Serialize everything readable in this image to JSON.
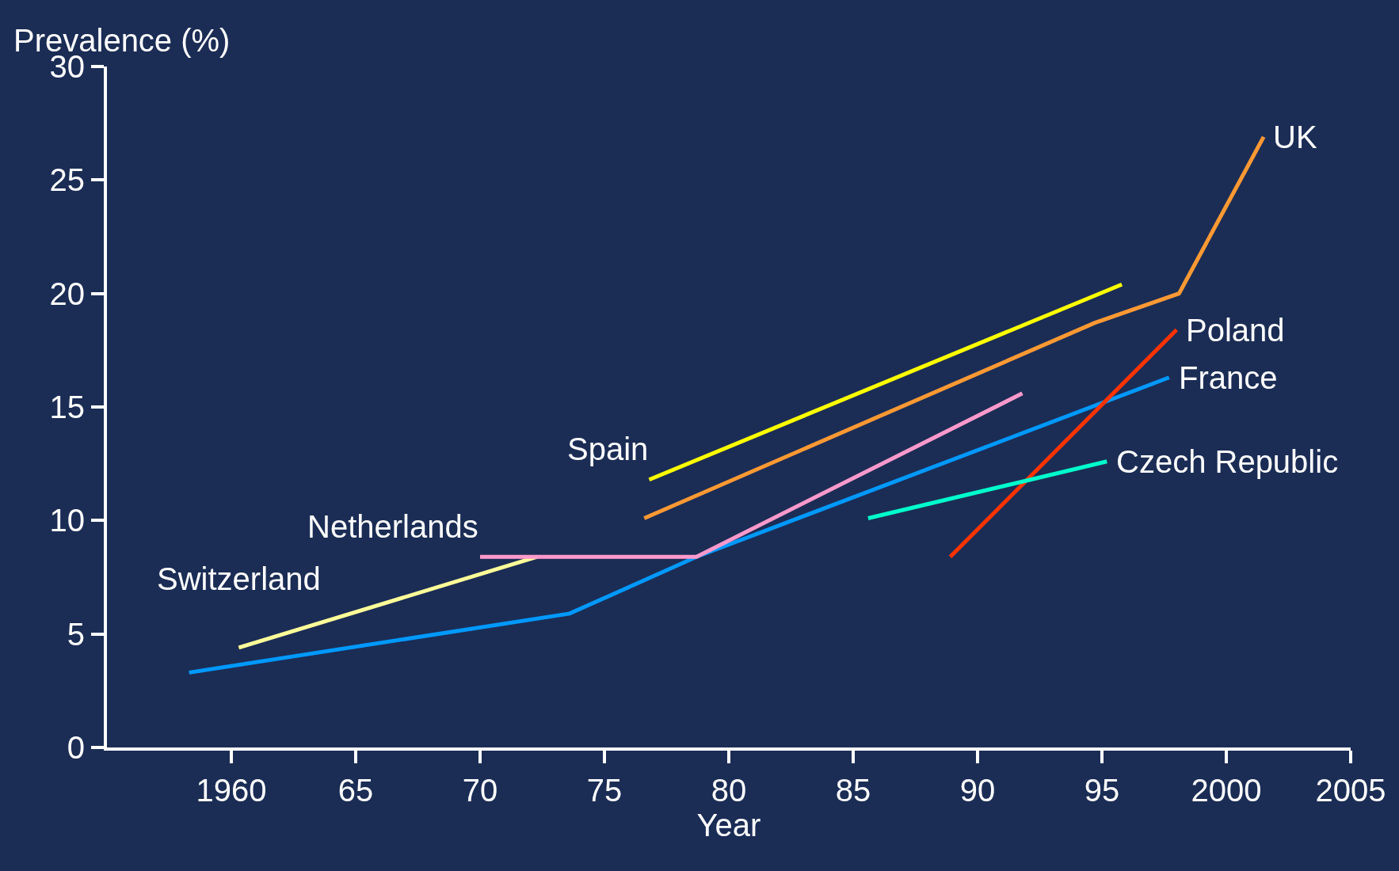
{
  "chart_data": {
    "type": "line",
    "xlabel": "Year",
    "ylabel": "Prevalence (%)",
    "xlim": [
      1955,
      2005
    ],
    "xticks": [
      {
        "value": 1960,
        "label": "1960"
      },
      {
        "value": 1965,
        "label": "65"
      },
      {
        "value": 1970,
        "label": "70"
      },
      {
        "value": 1975,
        "label": "75"
      },
      {
        "value": 1980,
        "label": "80"
      },
      {
        "value": 1985,
        "label": "85"
      },
      {
        "value": 1990,
        "label": "90"
      },
      {
        "value": 1995,
        "label": "95"
      },
      {
        "value": 2000,
        "label": "2000"
      },
      {
        "value": 2005,
        "label": "2005"
      }
    ],
    "ylim": [
      0,
      30
    ],
    "yticks": [
      0,
      5,
      10,
      15,
      20,
      25,
      30
    ],
    "grid": false,
    "legend": false,
    "marker": "none",
    "line_style": "solid",
    "series": [
      {
        "name": "Switzerland",
        "color": "#ffff99",
        "x": [
          1960.3,
          1972.3
        ],
        "values": [
          4.4,
          8.4
        ]
      },
      {
        "name": "France",
        "color": "#0099ff",
        "x": [
          1958.3,
          1973.6,
          1978.7,
          1997.7
        ],
        "values": [
          3.3,
          5.9,
          8.4,
          16.3
        ]
      },
      {
        "name": "Netherlands",
        "color": "#ff99cc",
        "x": [
          1970.0,
          1978.7,
          1991.8
        ],
        "values": [
          8.4,
          8.4,
          15.6
        ]
      },
      {
        "name": "Spain",
        "color": "#ffff00",
        "x": [
          1976.8,
          1995.8
        ],
        "values": [
          11.8,
          20.4
        ]
      },
      {
        "name": "UK",
        "color": "#ff9933",
        "x": [
          1976.6,
          1994.7,
          1998.1,
          2001.5
        ],
        "values": [
          10.1,
          18.7,
          20.0,
          26.9
        ]
      },
      {
        "name": "Poland",
        "color": "#ff3300",
        "x": [
          1988.9,
          1998.0
        ],
        "values": [
          8.4,
          18.4
        ]
      },
      {
        "name": "Czech Republic",
        "color": "#00ffcc",
        "x": [
          1985.6,
          1995.2
        ],
        "values": [
          10.1,
          12.6
        ]
      }
    ]
  }
}
